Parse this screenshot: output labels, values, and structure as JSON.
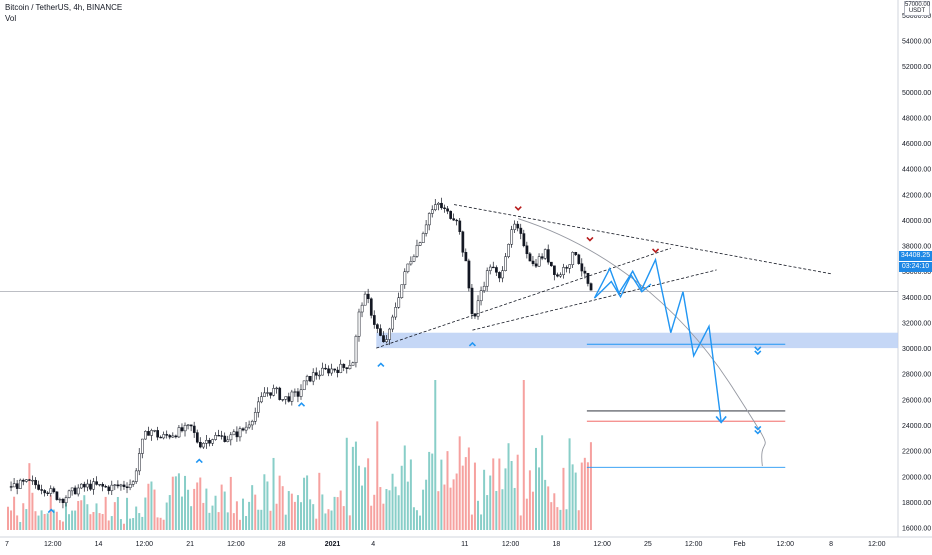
{
  "header": {
    "symbol_line": "Bitcoin / TetherUS, 4h, BINANCE",
    "volume_label": "Vol"
  },
  "price_scale": {
    "currency_top": "57000.00",
    "currency": "USDT",
    "last_price": "34408.25",
    "countdown": "03:24:10",
    "last_price_color": "#1e88e5"
  },
  "colors": {
    "bull_volume": "#26a69a",
    "bear_volume": "#ef5350",
    "projection": "#2196f3",
    "zone": "#bbd0f5",
    "marker_low": "#2196f3",
    "marker_high": "#b71c1c"
  },
  "chart_data": {
    "type": "candlestick",
    "title": "Bitcoin / TetherUS, 4h, BINANCE",
    "y_axis": {
      "ticks": [
        16000,
        18000,
        20000,
        22000,
        24000,
        26000,
        28000,
        30000,
        32000,
        34000,
        36000,
        38000,
        40000,
        42000,
        44000,
        46000,
        48000,
        50000,
        52000,
        54000,
        56000
      ],
      "tick_labels": [
        "16000.00",
        "18000.00",
        "20000.00",
        "22000.00",
        "24000.00",
        "26000.00",
        "28000.00",
        "30000.00",
        "32000.00",
        "34000.00",
        "36000.00",
        "38000.00",
        "40000.00",
        "42000.00",
        "44000.00",
        "46000.00",
        "48000.00",
        "50000.00",
        "52000.00",
        "54000.00",
        "56000.00"
      ],
      "range": [
        15300,
        57200
      ]
    },
    "x_axis": {
      "ticks": [
        {
          "t": 0,
          "label": "7"
        },
        {
          "t": 3,
          "label": "12:00"
        },
        {
          "t": 6,
          "label": "14"
        },
        {
          "t": 9,
          "label": "12:00"
        },
        {
          "t": 12,
          "label": "21"
        },
        {
          "t": 15,
          "label": "12:00"
        },
        {
          "t": 18,
          "label": "28"
        },
        {
          "t": 21.33,
          "label": "2021"
        },
        {
          "t": 24,
          "label": "4"
        },
        {
          "t": 30,
          "label": "11"
        },
        {
          "t": 33,
          "label": "12:00"
        },
        {
          "t": 36,
          "label": "18"
        },
        {
          "t": 39,
          "label": "12:00"
        },
        {
          "t": 42,
          "label": "25"
        },
        {
          "t": 45,
          "label": "12:00"
        },
        {
          "t": 48,
          "label": "Feb"
        },
        {
          "t": 51,
          "label": "12:00"
        },
        {
          "t": 54,
          "label": "8"
        },
        {
          "t": 57,
          "label": "12:00"
        }
      ],
      "unit": "half-day index"
    },
    "price_path": [
      [
        0,
        19200
      ],
      [
        1.5,
        19500
      ],
      [
        2.5,
        19000
      ],
      [
        3.5,
        18200
      ],
      [
        4.5,
        19000
      ],
      [
        5.5,
        19300
      ],
      [
        6.5,
        19100
      ],
      [
        7.5,
        19300
      ],
      [
        8.2,
        19500
      ],
      [
        8.6,
        21800
      ],
      [
        8.9,
        23000
      ],
      [
        9.3,
        23700
      ],
      [
        10,
        23000
      ],
      [
        11,
        23400
      ],
      [
        12,
        23800
      ],
      [
        12.5,
        22500
      ],
      [
        13.5,
        23100
      ],
      [
        14.5,
        23000
      ],
      [
        15.5,
        23700
      ],
      [
        16.2,
        25000
      ],
      [
        16.8,
        26500
      ],
      [
        17.5,
        26700
      ],
      [
        18,
        26000
      ],
      [
        19,
        26400
      ],
      [
        19.5,
        27400
      ],
      [
        20,
        27900
      ],
      [
        21,
        28300
      ],
      [
        22,
        28500
      ],
      [
        22.6,
        29000
      ],
      [
        23.1,
        33500
      ],
      [
        23.5,
        34000
      ],
      [
        24,
        32000
      ],
      [
        24.6,
        30300
      ],
      [
        25,
        31200
      ],
      [
        25.5,
        33800
      ],
      [
        26.2,
        36500
      ],
      [
        27,
        38500
      ],
      [
        27.6,
        40500
      ],
      [
        28.2,
        41200
      ],
      [
        28.8,
        40500
      ],
      [
        29.4,
        40200
      ],
      [
        30,
        36500
      ],
      [
        30.5,
        32000
      ],
      [
        31,
        34500
      ],
      [
        31.6,
        36500
      ],
      [
        32.2,
        35300
      ],
      [
        32.7,
        38000
      ],
      [
        33.2,
        39500
      ],
      [
        33.8,
        38200
      ],
      [
        34.4,
        36500
      ],
      [
        35.2,
        37400
      ],
      [
        36,
        35600
      ],
      [
        36.8,
        36800
      ],
      [
        37.2,
        37500
      ],
      [
        37.8,
        35500
      ],
      [
        38.3,
        34000
      ]
    ],
    "volume_range": [
      0,
      12
    ]
  },
  "annotations": {
    "zone": {
      "y_from": 30000,
      "y_to": 31200,
      "t_from": 24.2,
      "t_to": 60
    },
    "horizontal_lines": [
      {
        "y": 30300,
        "t_from": 38,
        "t_to": 51,
        "color": "#2196f3"
      },
      {
        "y": 25100,
        "t_from": 38,
        "t_to": 51,
        "color": "#131722"
      },
      {
        "y": 24300,
        "t_from": 38,
        "t_to": 51,
        "color": "#ef5350"
      },
      {
        "y": 20700,
        "t_from": 38,
        "t_to": 51,
        "color": "#2196f3"
      }
    ],
    "trendlines": [
      {
        "from": [
          29.3,
          41200
        ],
        "to": [
          54,
          35800
        ]
      },
      {
        "from": [
          24.2,
          30000
        ],
        "to": [
          43.5,
          37800
        ]
      },
      {
        "from": [
          30.5,
          31400
        ],
        "to": [
          46.5,
          36100
        ]
      }
    ],
    "curve": [
      [
        33.5,
        40100
      ],
      [
        39,
        38000
      ],
      [
        44,
        33500
      ],
      [
        47.5,
        27000
      ],
      [
        49.5,
        20800
      ]
    ],
    "projection_a": [
      [
        38.5,
        33900
      ],
      [
        39.5,
        36200
      ],
      [
        40.1,
        34300
      ],
      [
        41,
        36000
      ],
      [
        41.6,
        34600
      ],
      [
        42.5,
        36900
      ],
      [
        43.5,
        31200
      ],
      [
        44.3,
        34400
      ],
      [
        45,
        29400
      ],
      [
        46,
        31700
      ],
      [
        46.8,
        24200
      ]
    ],
    "projection_b": [
      [
        38.5,
        33900
      ],
      [
        39.6,
        35200
      ],
      [
        40.2,
        34000
      ],
      [
        40.9,
        35700
      ],
      [
        41.6,
        34400
      ],
      [
        42.2,
        35000
      ]
    ],
    "arrow_low": [
      {
        "t": 2.9,
        "y": 17400
      },
      {
        "t": 12.6,
        "y": 21300
      },
      {
        "t": 19.3,
        "y": 25700
      },
      {
        "t": 24.5,
        "y": 28800
      },
      {
        "t": 30.5,
        "y": 30400
      }
    ],
    "arrow_high": [
      {
        "t": 33.5,
        "y": 40800
      },
      {
        "t": 38.2,
        "y": 38400
      },
      {
        "t": 42.5,
        "y": 37500
      }
    ],
    "double_arrows": [
      {
        "t": 49.2,
        "y": 29700
      },
      {
        "t": 49.2,
        "y": 23500
      }
    ]
  }
}
